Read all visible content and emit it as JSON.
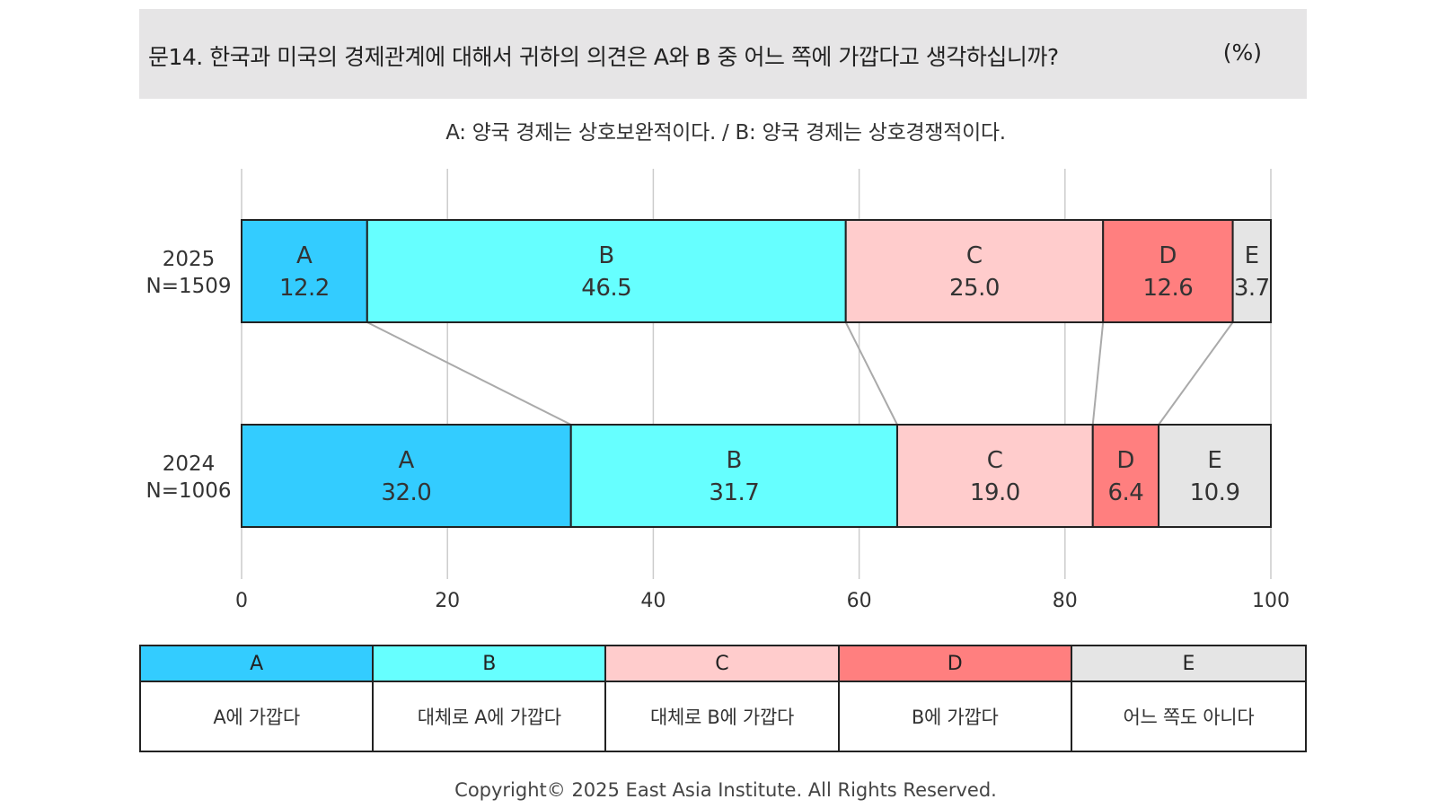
{
  "header": {
    "question": "문14. 한국과 미국의 경제관계에 대해서 귀하의 의견은 A와 B 중 어느 쪽에 가깝다고 생각하십니까?",
    "unit": "(%)"
  },
  "subtitle": "A: 양국 경제는 상호보완적이다. / B: 양국 경제는 상호경쟁적이다.",
  "colors": {
    "A": "#33ccff",
    "B": "#66ffff",
    "C": "#ffcccc",
    "D": "#ff7f7f",
    "E": "#e5e5e5"
  },
  "chart_data": {
    "type": "bar",
    "orientation": "horizontal-stacked-100",
    "categories": [
      "2025\nN=1509",
      "2024\nN=1006"
    ],
    "category_labels": [
      {
        "year": "2025",
        "n": "N=1509"
      },
      {
        "year": "2024",
        "n": "N=1006"
      }
    ],
    "series": [
      {
        "name": "A",
        "values": [
          12.2,
          32.0
        ],
        "labels": [
          "12.2",
          "32.0"
        ]
      },
      {
        "name": "B",
        "values": [
          46.5,
          31.7
        ],
        "labels": [
          "46.5",
          "31.7"
        ]
      },
      {
        "name": "C",
        "values": [
          25.0,
          19.0
        ],
        "labels": [
          "25.0",
          "19.0"
        ]
      },
      {
        "name": "D",
        "values": [
          12.6,
          6.4
        ],
        "labels": [
          "12.6",
          "6.4"
        ]
      },
      {
        "name": "E",
        "values": [
          3.7,
          10.9
        ],
        "labels": [
          "3.7",
          "10.9"
        ]
      }
    ],
    "xlim": [
      0,
      100
    ],
    "xticks": [
      "0",
      "20",
      "40",
      "60",
      "80",
      "100"
    ],
    "grid": "vertical",
    "connector_lines": true
  },
  "legend": [
    {
      "key": "A",
      "desc": "A에 가깝다"
    },
    {
      "key": "B",
      "desc": "대체로 A에 가깝다"
    },
    {
      "key": "C",
      "desc": "대체로 B에 가깝다"
    },
    {
      "key": "D",
      "desc": "B에 가깝다"
    },
    {
      "key": "E",
      "desc": "어느 쪽도 아니다"
    }
  ],
  "footer": {
    "copyright": "Copyright© 2025 East Asia Institute. All Rights Reserved."
  }
}
